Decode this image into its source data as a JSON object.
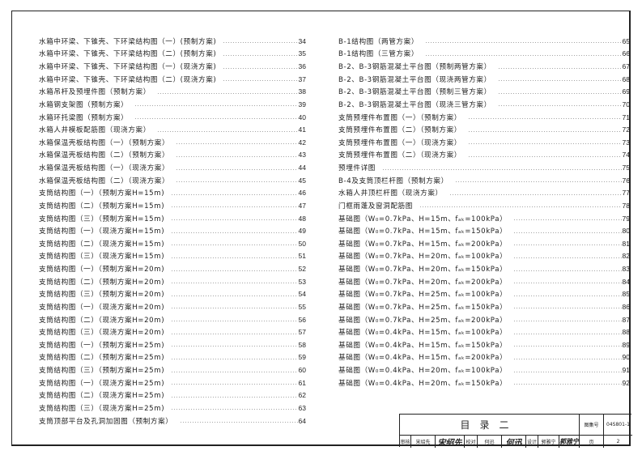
{
  "left_entries": [
    {
      "label": "水箱中环梁、下锥壳、下环梁结构图（一）(预制方案)",
      "page": "34"
    },
    {
      "label": "水箱中环梁、下锥壳、下环梁结构图（二）(预制方案)",
      "page": "35"
    },
    {
      "label": "水箱中环梁、下锥壳、下环梁结构图（一）(现浇方案)",
      "page": "36"
    },
    {
      "label": "水箱中环梁、下锥壳、下环梁结构图（二）(现浇方案)",
      "page": "37"
    },
    {
      "label": "水箱吊杆及预埋件图（预制方案）",
      "page": "38"
    },
    {
      "label": "水箱钢支架图（预制方案）",
      "page": "39"
    },
    {
      "label": "水箱环托梁图（预制方案）",
      "page": "40"
    },
    {
      "label": "水箱人井模板配筋图（现浇方案）",
      "page": "41"
    },
    {
      "label": "水箱保温壳板结构图（一）（预制方案）",
      "page": "42"
    },
    {
      "label": "水箱保温壳板结构图（二）（预制方案）",
      "page": "43"
    },
    {
      "label": "水箱保温壳板结构图（一）（现浇方案）",
      "page": "44"
    },
    {
      "label": "水箱保温壳板结构图（二）（现浇方案）",
      "page": "45"
    },
    {
      "label": "支筒结构图（一）（预制方案H=15m)",
      "page": "46"
    },
    {
      "label": "支筒结构图（二）（预制方案H=15m)",
      "page": "47"
    },
    {
      "label": "支筒结构图（三）（预制方案H=15m)",
      "page": "48"
    },
    {
      "label": "支筒结构图（一）（现浇方案H=15m)",
      "page": "49"
    },
    {
      "label": "支筒结构图（二）（现浇方案H=15m)",
      "page": "50"
    },
    {
      "label": "支筒结构图（三）（现浇方案H=15m)",
      "page": "51"
    },
    {
      "label": "支筒结构图（一）（预制方案H=20m)",
      "page": "52"
    },
    {
      "label": "支筒结构图（二）（预制方案H=20m)",
      "page": "53"
    },
    {
      "label": "支筒结构图（三）（预制方案H=20m)",
      "page": "54"
    },
    {
      "label": "支筒结构图（一）（现浇方案H=20m)",
      "page": "55"
    },
    {
      "label": "支筒结构图（二）（现浇方案H=20m)",
      "page": "56"
    },
    {
      "label": "支筒结构图（三）（现浇方案H=20m)",
      "page": "57"
    },
    {
      "label": "支筒结构图（一）（预制方案H=25m)",
      "page": "58"
    },
    {
      "label": "支筒结构图（二）（预制方案H=25m)",
      "page": "59"
    },
    {
      "label": "支筒结构图（三）（预制方案H=25m)",
      "page": "60"
    },
    {
      "label": "支筒结构图（一）（现浇方案H=25m)",
      "page": "61"
    },
    {
      "label": "支筒结构图（二）（现浇方案H=25m)",
      "page": "62"
    },
    {
      "label": "支筒结构图（三）（现浇方案H=25m)",
      "page": "63"
    },
    {
      "label": "支筒顶部平台及孔洞加固图（预制方案）",
      "page": "64"
    }
  ],
  "right_entries": [
    {
      "label": "B-1结构图（两管方案）",
      "page": "65"
    },
    {
      "label": "B-1结构图（三管方案）",
      "page": "66"
    },
    {
      "label": "B-2、B-3钢筋混凝土平台图（预制两管方案）",
      "page": "67"
    },
    {
      "label": "B-2、B-3钢筋混凝土平台图（现浇两管方案）",
      "page": "68"
    },
    {
      "label": "B-2、B-3钢筋混凝土平台图（预制三管方案）",
      "page": "69"
    },
    {
      "label": "B-2、B-3钢筋混凝土平台图（现浇三管方案）",
      "page": "70"
    },
    {
      "label": "支筒预埋件布置图（一）（预制方案）",
      "page": "71"
    },
    {
      "label": "支筒预埋件布置图（二）（预制方案）",
      "page": "72"
    },
    {
      "label": "支筒预埋件布置图（一）（现浇方案）",
      "page": "73"
    },
    {
      "label": "支筒预埋件布置图（二）（现浇方案）",
      "page": "74"
    },
    {
      "label": "预埋件详图",
      "page": "75"
    },
    {
      "label": "B-4及支筒顶栏杆图（预制方案）",
      "page": "76"
    },
    {
      "label": "水箱人井顶栏杆图（现浇方案）",
      "page": "77"
    },
    {
      "label": "门框雨蓬及窗洞配筋图",
      "page": "78"
    },
    {
      "label": "基础图（W₀=0.7kPa、H=15m、fₐₖ=100kPa）",
      "page": "79"
    },
    {
      "label": "基础图（W₀=0.7kPa、H=15m、fₐₖ=150kPa）",
      "page": "80"
    },
    {
      "label": "基础图（W₀=0.7kPa、H=15m、fₐₖ=200kPa）",
      "page": "81"
    },
    {
      "label": "基础图（W₀=0.7kPa、H=20m、fₐₖ=100kPa）",
      "page": "82"
    },
    {
      "label": "基础图（W₀=0.7kPa、H=20m、fₐₖ=150kPa）",
      "page": "83"
    },
    {
      "label": "基础图（W₀=0.7kPa、H=20m、fₐₖ=200kPa）",
      "page": "84"
    },
    {
      "label": "基础图（W₀=0.7kPa、H=25m、fₐₖ=100kPa）",
      "page": "85"
    },
    {
      "label": "基础图（W₀=0.7kPa、H=25m、fₐₖ=150kPa）",
      "page": "86"
    },
    {
      "label": "基础图（W₀=0.7kPa、H=25m、fₐₖ=200kPa）",
      "page": "87"
    },
    {
      "label": "基础图（W₀=0.4kPa、H=15m、fₐₖ=100kPa）",
      "page": "88"
    },
    {
      "label": "基础图（W₀=0.4kPa、H=15m、fₐₖ=150kPa）",
      "page": "89"
    },
    {
      "label": "基础图（W₀=0.4kPa、H=15m、fₐₖ=200kPa）",
      "page": "90"
    },
    {
      "label": "基础图（W₀=0.4kPa、H=20m、fₐₖ=100kPa）",
      "page": "91"
    },
    {
      "label": "基础图（W₀=0.4kPa、H=20m、fₐₖ=150kPa）",
      "page": "92"
    }
  ],
  "title_block": {
    "title": "目录二",
    "atlas_no_label": "图集号",
    "atlas_no": "04S801-1",
    "page_label": "页",
    "page": "2",
    "review_label": "审核",
    "reviewer": "宋绍先",
    "reviewer_signature": "宋绍先",
    "check_label": "校对",
    "checker": "何迅",
    "checker_signature": "何迅",
    "design_label": "设计",
    "designer": "郭雅宁",
    "designer_signature": "郭雅宁"
  }
}
